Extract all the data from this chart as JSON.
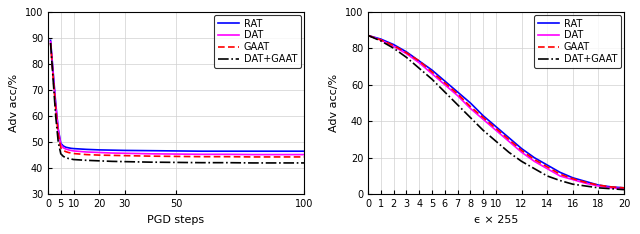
{
  "plot1": {
    "xlabel": "PGD steps",
    "ylabel": "Adv acc/%",
    "xlim": [
      0,
      100
    ],
    "ylim": [
      30,
      100
    ],
    "yticks": [
      30,
      40,
      50,
      60,
      70,
      80,
      90,
      100
    ],
    "xticks": [
      0,
      5,
      10,
      20,
      30,
      50,
      100
    ],
    "RAT_x": [
      1,
      2,
      3,
      4,
      5,
      6,
      7,
      8,
      9,
      10,
      15,
      20,
      25,
      30,
      40,
      50,
      60,
      70,
      80,
      90,
      100
    ],
    "RAT_y": [
      89,
      77,
      65,
      55,
      49.5,
      48.5,
      48.0,
      47.8,
      47.6,
      47.5,
      47.2,
      47.0,
      46.9,
      46.8,
      46.7,
      46.6,
      46.5,
      46.5,
      46.5,
      46.5,
      46.5
    ],
    "DAT_x": [
      1,
      2,
      3,
      4,
      5,
      6,
      7,
      8,
      9,
      10,
      15,
      20,
      25,
      30,
      40,
      50,
      60,
      70,
      80,
      90,
      100
    ],
    "DAT_y": [
      88.5,
      76,
      64,
      54.5,
      49.0,
      47.8,
      47.3,
      47.0,
      46.8,
      46.6,
      46.2,
      46.0,
      45.8,
      45.7,
      45.5,
      45.4,
      45.3,
      45.3,
      45.2,
      45.2,
      45.2
    ],
    "GAAT_x": [
      1,
      2,
      3,
      4,
      5,
      6,
      7,
      8,
      9,
      10,
      15,
      20,
      25,
      30,
      40,
      50,
      60,
      70,
      80,
      90,
      100
    ],
    "GAAT_y": [
      88.0,
      75,
      63,
      53,
      47.8,
      46.8,
      46.3,
      46.0,
      45.8,
      45.6,
      45.2,
      45.0,
      44.9,
      44.8,
      44.6,
      44.5,
      44.4,
      44.4,
      44.3,
      44.3,
      44.3
    ],
    "DATGAAT_x": [
      1,
      2,
      3,
      4,
      5,
      6,
      7,
      8,
      9,
      10,
      15,
      20,
      25,
      30,
      40,
      50,
      60,
      70,
      80,
      90,
      100
    ],
    "DATGAAT_y": [
      88.0,
      74,
      60,
      50,
      45.5,
      44.5,
      44.0,
      43.7,
      43.5,
      43.3,
      43.0,
      42.8,
      42.6,
      42.5,
      42.3,
      42.2,
      42.1,
      42.1,
      42.0,
      42.0,
      42.0
    ]
  },
  "plot2": {
    "xlabel": "ϵ × 255",
    "ylabel": "Adv acc/%",
    "xlim": [
      0,
      20
    ],
    "ylim": [
      0,
      100
    ],
    "yticks": [
      0,
      20,
      40,
      60,
      80,
      100
    ],
    "xticks": [
      0,
      1,
      2,
      3,
      4,
      5,
      6,
      7,
      8,
      9,
      10,
      12,
      14,
      16,
      18,
      20
    ],
    "RAT_x": [
      0,
      1,
      2,
      3,
      4,
      5,
      6,
      7,
      8,
      9,
      10,
      11,
      12,
      13,
      14,
      15,
      16,
      17,
      18,
      19,
      20
    ],
    "RAT_y": [
      87,
      85,
      82,
      78,
      73,
      68,
      62,
      56,
      50,
      43,
      37,
      31,
      25,
      20,
      16,
      12,
      9,
      7,
      5,
      4,
      3.5
    ],
    "DAT_x": [
      0,
      1,
      2,
      3,
      4,
      5,
      6,
      7,
      8,
      9,
      10,
      11,
      12,
      13,
      14,
      15,
      16,
      17,
      18,
      19,
      20
    ],
    "DAT_y": [
      87,
      84.5,
      81,
      77,
      72,
      66,
      60,
      54,
      47,
      41,
      35,
      29,
      23,
      18,
      14,
      10,
      8,
      6,
      4.5,
      3.5,
      3.0
    ],
    "GAAT_x": [
      0,
      1,
      2,
      3,
      4,
      5,
      6,
      7,
      8,
      9,
      10,
      11,
      12,
      13,
      14,
      15,
      16,
      17,
      18,
      19,
      20
    ],
    "GAAT_y": [
      87,
      84.5,
      81.5,
      77.5,
      73,
      67,
      61,
      55,
      48,
      42,
      36,
      30,
      24,
      19,
      15,
      11,
      8.5,
      6.5,
      5,
      4,
      3.5
    ],
    "DATGAAT_x": [
      0,
      1,
      2,
      3,
      4,
      5,
      6,
      7,
      8,
      9,
      10,
      11,
      12,
      13,
      14,
      15,
      16,
      17,
      18,
      19,
      20
    ],
    "DATGAAT_y": [
      87,
      84,
      80,
      75,
      69,
      63,
      56,
      49,
      42,
      35,
      29,
      23,
      18,
      14,
      10,
      7.5,
      5.5,
      4.5,
      3.5,
      3,
      2.5
    ]
  },
  "colors": {
    "RAT": "#0000FF",
    "DAT": "#FF00FF",
    "GAAT": "#FF0000",
    "DATGAAT": "#000000"
  },
  "label_fontsize": 8,
  "tick_fontsize": 7,
  "legend_fontsize": 7,
  "linewidth": 1.2
}
